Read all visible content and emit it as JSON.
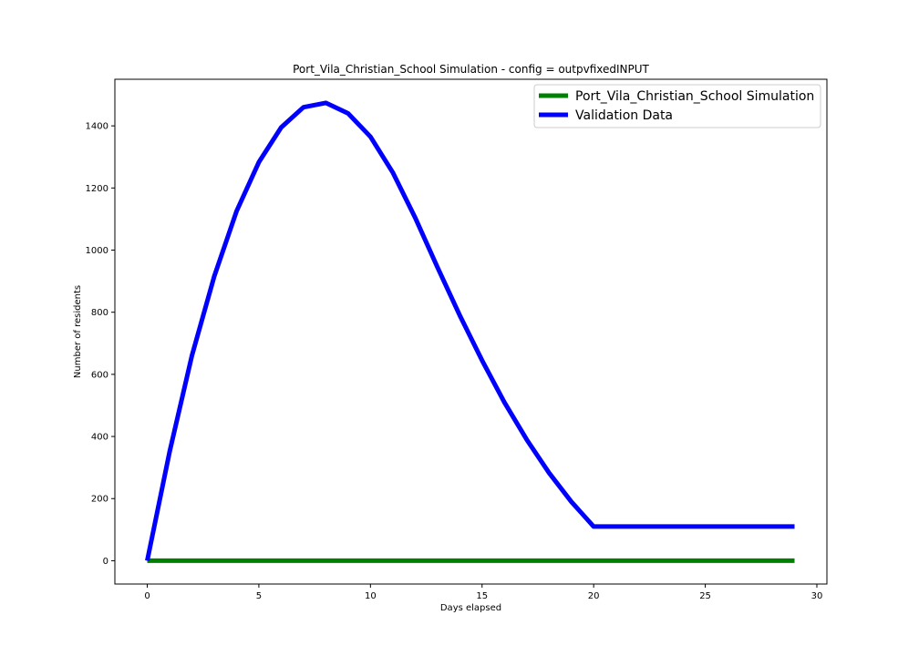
{
  "chart_data": {
    "type": "line",
    "title": "Port_Vila_Christian_School Simulation - config = outpvfixedINPUT",
    "xlabel": "Days elapsed",
    "ylabel": "Number of residents",
    "xlim": [
      -1.45,
      30.45
    ],
    "ylim": [
      -75,
      1550
    ],
    "xticks": [
      0,
      5,
      10,
      15,
      20,
      25,
      30
    ],
    "yticks": [
      0,
      200,
      400,
      600,
      800,
      1000,
      1200,
      1400
    ],
    "grid": false,
    "legend_position": "top-right",
    "series": [
      {
        "name": "Port_Vila_Christian_School Simulation",
        "color": "#008000",
        "x": [
          0,
          29
        ],
        "y": [
          0,
          0
        ]
      },
      {
        "name": "Validation Data",
        "color": "#0000ff",
        "x": [
          0,
          1,
          2,
          3,
          4,
          5,
          6,
          7,
          8,
          9,
          10,
          11,
          12,
          13,
          14,
          15,
          16,
          17,
          18,
          19,
          20,
          21,
          22,
          23,
          24,
          25,
          26,
          27,
          28,
          29
        ],
        "y": [
          0,
          350,
          660,
          915,
          1125,
          1283,
          1395,
          1460,
          1474,
          1440,
          1365,
          1250,
          1105,
          945,
          790,
          645,
          510,
          390,
          283,
          190,
          110,
          110,
          110,
          110,
          110,
          110,
          110,
          110,
          110,
          110
        ]
      }
    ]
  }
}
